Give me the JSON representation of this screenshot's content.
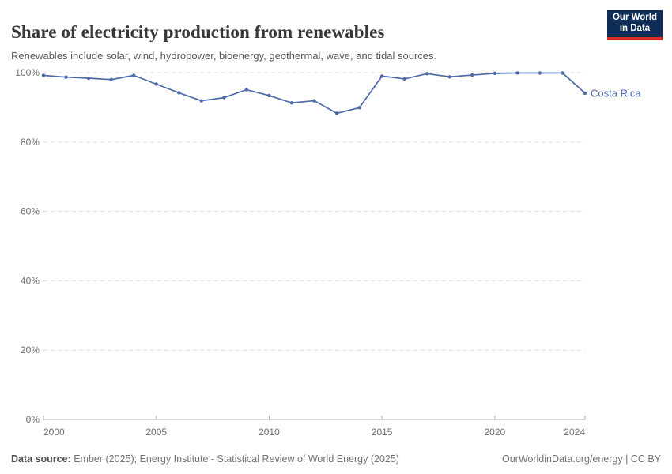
{
  "header": {
    "title": "Share of electricity production from renewables",
    "subtitle": "Renewables include solar, wind, hydropower, bioenergy, geothermal, wave, and tidal sources."
  },
  "logo": {
    "line1": "Our World",
    "line2": "in Data",
    "navy": "#102d55",
    "red": "#d92a2a"
  },
  "chart_data": {
    "type": "line",
    "title": "Share of electricity production from renewables",
    "xlabel": "",
    "ylabel": "",
    "xlim": [
      2000,
      2024
    ],
    "ylim": [
      0,
      100
    ],
    "grid": "horizontal-dashed",
    "legend_position": "end-of-line-label",
    "xticks": [
      2000,
      2005,
      2010,
      2015,
      2020,
      2024
    ],
    "xtick_labels": [
      "2000",
      "2005",
      "2010",
      "2015",
      "2020",
      "2024"
    ],
    "yticks": [
      0,
      20,
      40,
      60,
      80,
      100
    ],
    "ytick_labels": [
      "0%",
      "20%",
      "40%",
      "60%",
      "80%",
      "100%"
    ],
    "x": [
      2000,
      2001,
      2002,
      2003,
      2004,
      2005,
      2006,
      2007,
      2008,
      2009,
      2010,
      2011,
      2012,
      2013,
      2014,
      2015,
      2016,
      2017,
      2018,
      2019,
      2020,
      2021,
      2022,
      2023,
      2024
    ],
    "series": [
      {
        "name": "Costa Rica",
        "color": "#4d6ba9",
        "values": [
          99.2,
          98.7,
          98.4,
          98.0,
          99.2,
          96.7,
          94.2,
          91.9,
          92.8,
          95.1,
          93.4,
          91.3,
          91.9,
          88.3,
          89.9,
          99.0,
          98.2,
          99.7,
          98.8,
          99.3,
          99.8,
          99.9,
          99.9,
          99.9,
          94.1
        ]
      }
    ]
  },
  "footer": {
    "source_label": "Data source:",
    "source_text": " Ember (2025); Energy Institute - Statistical Review of World Energy (2025)",
    "rights": "OurWorldinData.org/energy | CC BY"
  }
}
